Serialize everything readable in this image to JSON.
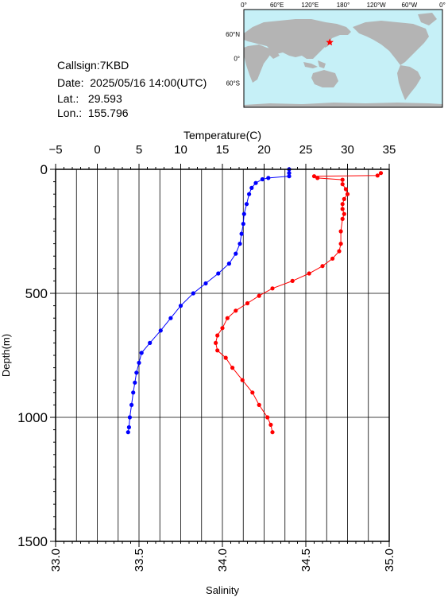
{
  "station": {
    "callsign": "Callsign:7KBD",
    "date": "Date:  2025/05/16 14:00(UTC)",
    "lat": "Lat.:   29.593",
    "lon": "Lon.:  155.796"
  },
  "map": {
    "lon_ticks": [
      "0°",
      "60°E",
      "120°E",
      "180°",
      "120°W",
      "60°W",
      "0°"
    ],
    "lat_ticks": [
      "60°N",
      "0°",
      "60°S"
    ],
    "marker": {
      "lat": 29.593,
      "lon": 155.796
    },
    "colors": {
      "ocean": "#c6f0f7",
      "land": "#b4b4b4",
      "marker": "#ff0000"
    }
  },
  "chart_data": {
    "type": "line",
    "top_axis": {
      "label": "Temperature(C)",
      "range": [
        -5,
        35
      ],
      "ticks": [
        "−5",
        "0",
        "5",
        "10",
        "15",
        "20",
        "25",
        "30",
        "35"
      ]
    },
    "bottom_axis": {
      "label": "Salinity",
      "range": [
        33.0,
        35.0
      ],
      "ticks": [
        "33.0",
        "33.5",
        "34.0",
        "34.5",
        "35.0"
      ]
    },
    "y_axis": {
      "label": "Depth(m)",
      "range": [
        0,
        1500
      ],
      "ticks": [
        "0",
        "500",
        "1000",
        "1500"
      ],
      "reversed": true
    },
    "series": [
      {
        "axis": "temperature",
        "color": "#0000ff",
        "points": [
          [
            23.0,
            0
          ],
          [
            23.0,
            15
          ],
          [
            23.0,
            28
          ],
          [
            20.5,
            35
          ],
          [
            19.8,
            40
          ],
          [
            19.0,
            55
          ],
          [
            18.5,
            75
          ],
          [
            18.2,
            100
          ],
          [
            17.9,
            140
          ],
          [
            17.6,
            180
          ],
          [
            17.5,
            220
          ],
          [
            17.3,
            260
          ],
          [
            17.1,
            300
          ],
          [
            16.6,
            340
          ],
          [
            15.8,
            380
          ],
          [
            14.5,
            420
          ],
          [
            13.0,
            460
          ],
          [
            11.5,
            500
          ],
          [
            10.0,
            550
          ],
          [
            8.8,
            600
          ],
          [
            7.6,
            650
          ],
          [
            6.3,
            700
          ],
          [
            5.3,
            740
          ],
          [
            5.0,
            780
          ],
          [
            4.7,
            820
          ],
          [
            4.5,
            860
          ],
          [
            4.3,
            900
          ],
          [
            4.1,
            950
          ],
          [
            3.9,
            1000
          ],
          [
            3.8,
            1040
          ],
          [
            3.7,
            1060
          ]
        ]
      },
      {
        "axis": "salinity",
        "color": "#ff0000",
        "points": [
          [
            34.95,
            15
          ],
          [
            34.93,
            25
          ],
          [
            34.55,
            28
          ],
          [
            34.57,
            35
          ],
          [
            34.72,
            42
          ],
          [
            34.72,
            60
          ],
          [
            34.74,
            80
          ],
          [
            34.75,
            100
          ],
          [
            34.73,
            120
          ],
          [
            34.72,
            140
          ],
          [
            34.72,
            160
          ],
          [
            34.73,
            180
          ],
          [
            34.72,
            200
          ],
          [
            34.71,
            250
          ],
          [
            34.71,
            300
          ],
          [
            34.7,
            330
          ],
          [
            34.66,
            360
          ],
          [
            34.6,
            390
          ],
          [
            34.52,
            420
          ],
          [
            34.42,
            450
          ],
          [
            34.3,
            480
          ],
          [
            34.22,
            510
          ],
          [
            34.15,
            540
          ],
          [
            34.08,
            570
          ],
          [
            34.03,
            600
          ],
          [
            34.0,
            640
          ],
          [
            33.97,
            670
          ],
          [
            33.96,
            700
          ],
          [
            33.97,
            730
          ],
          [
            34.02,
            760
          ],
          [
            34.06,
            800
          ],
          [
            34.12,
            850
          ],
          [
            34.18,
            900
          ],
          [
            34.22,
            950
          ],
          [
            34.27,
            1000
          ],
          [
            34.29,
            1030
          ],
          [
            34.3,
            1060
          ]
        ]
      }
    ]
  }
}
